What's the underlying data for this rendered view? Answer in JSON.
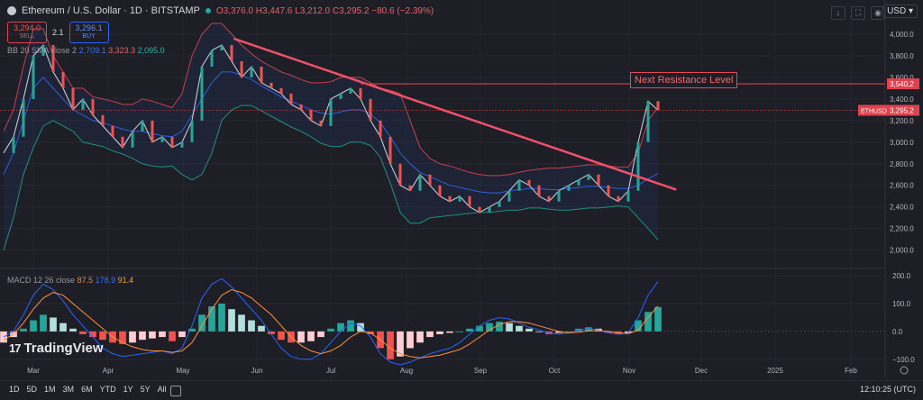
{
  "header": {
    "symbol": "Ethereum / U.S. Dollar · 1D · BITSTAMP",
    "open": "O3,376.0",
    "high": "H3,447.6",
    "low": "L3,212.0",
    "close": "C3,295.2",
    "change": "−80.6 (−2.39%)",
    "currency": "USD"
  },
  "trade": {
    "sell_price": "3,294.0",
    "sell_label": "SELL",
    "spread": "2.1",
    "buy_price": "3,296.1",
    "buy_label": "BUY"
  },
  "bb_legend": {
    "name": "BB 20 SMA close 2",
    "basis": "2,709.1",
    "upper": "3,323.3",
    "lower": "2,095.0"
  },
  "macd_legend": {
    "name": "MACD 12 26 close",
    "hist": "87.5",
    "macd": "178.9",
    "signal": "91.4"
  },
  "annotation": "Next Resistance Level",
  "logo_text": "TradingView",
  "timeframes": [
    "1D",
    "5D",
    "1M",
    "3M",
    "6M",
    "YTD",
    "1Y",
    "5Y",
    "All"
  ],
  "clock": "12:10:25 (UTC)",
  "icons": [
    "download-icon",
    "fullscreen-icon",
    "camera-icon",
    "calendar-icon",
    "gear-icon"
  ],
  "chart_data": [
    {
      "type": "line",
      "title": "Ethereum / U.S. Dollar · 1D · BITSTAMP",
      "price_axis": {
        "ticks": [
          2000,
          2200,
          2400,
          2600,
          2800,
          3000,
          3200,
          3400,
          3600,
          3800,
          4000
        ],
        "ylim": [
          1880,
          4150
        ]
      },
      "time_axis": {
        "labels": [
          "Mar",
          "Apr",
          "May",
          "Jun",
          "Jul",
          "Aug",
          "Sep",
          "Oct",
          "Nov",
          "Dec",
          "2025",
          "Feb"
        ]
      },
      "price_series": [
        {
          "name": "close",
          "values": [
            2900,
            3050,
            3400,
            3800,
            3900,
            3650,
            3500,
            3300,
            3400,
            3250,
            3150,
            3050,
            2950,
            3100,
            3200,
            3000,
            3050,
            2950,
            3000,
            3200,
            3700,
            3850,
            3900,
            3750,
            3600,
            3700,
            3550,
            3500,
            3450,
            3350,
            3300,
            3200,
            3150,
            3400,
            3450,
            3500,
            3400,
            3200,
            3050,
            2800,
            2600,
            2550,
            2700,
            2600,
            2500,
            2450,
            2500,
            2400,
            2350,
            2400,
            2450,
            2550,
            2650,
            2600,
            2500,
            2450,
            2550,
            2600,
            2650,
            2700,
            2600,
            2500,
            2450,
            2550,
            3000,
            3380,
            3295
          ]
        },
        {
          "name": "bb_upper",
          "values": [
            3100,
            3300,
            3700,
            4050,
            4050,
            3800,
            3650,
            3500,
            3500,
            3420,
            3400,
            3380,
            3350,
            3350,
            3400,
            3380,
            3350,
            3320,
            3450,
            3800,
            4000,
            4100,
            4100,
            4000,
            3900,
            3820,
            3750,
            3700,
            3650,
            3620,
            3580,
            3550,
            3550,
            3560,
            3600,
            3600,
            3600,
            3550,
            3500,
            3480,
            3450,
            3200,
            2950,
            2850,
            2800,
            2780,
            2750,
            2720,
            2700,
            2690,
            2690,
            2700,
            2720,
            2740,
            2750,
            2760,
            2760,
            2770,
            2780,
            2790,
            2790,
            2780,
            2770,
            2770,
            2900,
            3200,
            3323
          ]
        },
        {
          "name": "bb_basis",
          "values": [
            2700,
            2900,
            3200,
            3500,
            3600,
            3500,
            3400,
            3300,
            3250,
            3200,
            3180,
            3150,
            3120,
            3100,
            3100,
            3080,
            3060,
            3050,
            3100,
            3250,
            3400,
            3550,
            3650,
            3650,
            3620,
            3580,
            3520,
            3470,
            3420,
            3380,
            3340,
            3300,
            3270,
            3260,
            3280,
            3300,
            3300,
            3260,
            3180,
            3050,
            2900,
            2800,
            2720,
            2680,
            2640,
            2600,
            2580,
            2560,
            2540,
            2530,
            2530,
            2550,
            2560,
            2570,
            2570,
            2560,
            2560,
            2570,
            2580,
            2590,
            2590,
            2580,
            2570,
            2570,
            2600,
            2660,
            2709
          ]
        },
        {
          "name": "bb_lower",
          "values": [
            2000,
            2300,
            2700,
            2950,
            3150,
            3200,
            3150,
            3100,
            3000,
            2980,
            2960,
            2920,
            2890,
            2850,
            2800,
            2780,
            2770,
            2780,
            2700,
            2650,
            2700,
            2900,
            3200,
            3300,
            3340,
            3340,
            3290,
            3240,
            3190,
            3140,
            3100,
            3050,
            2990,
            2960,
            2960,
            3000,
            3000,
            2970,
            2860,
            2620,
            2350,
            2250,
            2250,
            2300,
            2310,
            2320,
            2330,
            2340,
            2350,
            2350,
            2360,
            2370,
            2370,
            2390,
            2390,
            2380,
            2370,
            2370,
            2380,
            2390,
            2390,
            2400,
            2410,
            2400,
            2300,
            2200,
            2095
          ]
        }
      ],
      "trendline": {
        "start": [
          0.26,
          3960
        ],
        "end": [
          0.76,
          2560
        ]
      },
      "resistance_level": 3540.2,
      "price_labels": [
        {
          "label": "3,540.2",
          "value": 3540.2
        },
        {
          "tag": "ETHUSD",
          "label": "3,295.2",
          "value": 3295.2
        }
      ]
    },
    {
      "type": "bar",
      "title": "MACD 12 26 close",
      "ylim": [
        -120,
        210
      ],
      "ticks": [
        -100,
        0,
        100,
        200
      ],
      "tick_labels": [
        "−100.0",
        "0.0",
        "100.0",
        "200.0"
      ],
      "histogram": [
        -40,
        -20,
        10,
        40,
        60,
        50,
        30,
        10,
        -10,
        -20,
        -30,
        -40,
        -45,
        -40,
        -30,
        -25,
        -20,
        -35,
        -20,
        10,
        60,
        90,
        100,
        80,
        60,
        40,
        20,
        -10,
        -30,
        -40,
        -40,
        -35,
        -20,
        10,
        30,
        40,
        30,
        -10,
        -60,
        -100,
        -90,
        -60,
        -40,
        -20,
        -10,
        -5,
        0,
        10,
        20,
        30,
        35,
        30,
        20,
        10,
        0,
        -10,
        -5,
        0,
        10,
        15,
        10,
        -5,
        -10,
        -5,
        40,
        70,
        87.5
      ],
      "macd_line": [
        -20,
        0,
        60,
        130,
        170,
        150,
        110,
        60,
        20,
        -20,
        -60,
        -80,
        -90,
        -85,
        -80,
        -75,
        -70,
        -80,
        -60,
        20,
        120,
        170,
        190,
        160,
        120,
        80,
        40,
        -10,
        -60,
        -90,
        -100,
        -100,
        -80,
        -40,
        0,
        30,
        20,
        -20,
        -80,
        -110,
        -120,
        -110,
        -95,
        -80,
        -70,
        -60,
        -40,
        -10,
        20,
        40,
        50,
        45,
        30,
        15,
        5,
        -5,
        -10,
        -5,
        5,
        10,
        5,
        -5,
        -10,
        -5,
        50,
        130,
        178.9
      ],
      "signal_line": [
        -30,
        -10,
        30,
        80,
        120,
        140,
        130,
        100,
        70,
        40,
        10,
        -20,
        -40,
        -55,
        -65,
        -70,
        -70,
        -75,
        -70,
        -40,
        20,
        80,
        130,
        150,
        140,
        120,
        90,
        60,
        20,
        -20,
        -50,
        -70,
        -80,
        -70,
        -50,
        -20,
        0,
        -5,
        -30,
        -60,
        -80,
        -90,
        -95,
        -90,
        -85,
        -75,
        -65,
        -45,
        -20,
        5,
        25,
        35,
        35,
        30,
        20,
        10,
        0,
        -5,
        -3,
        2,
        3,
        0,
        -5,
        -8,
        5,
        50,
        91.4
      ]
    }
  ]
}
